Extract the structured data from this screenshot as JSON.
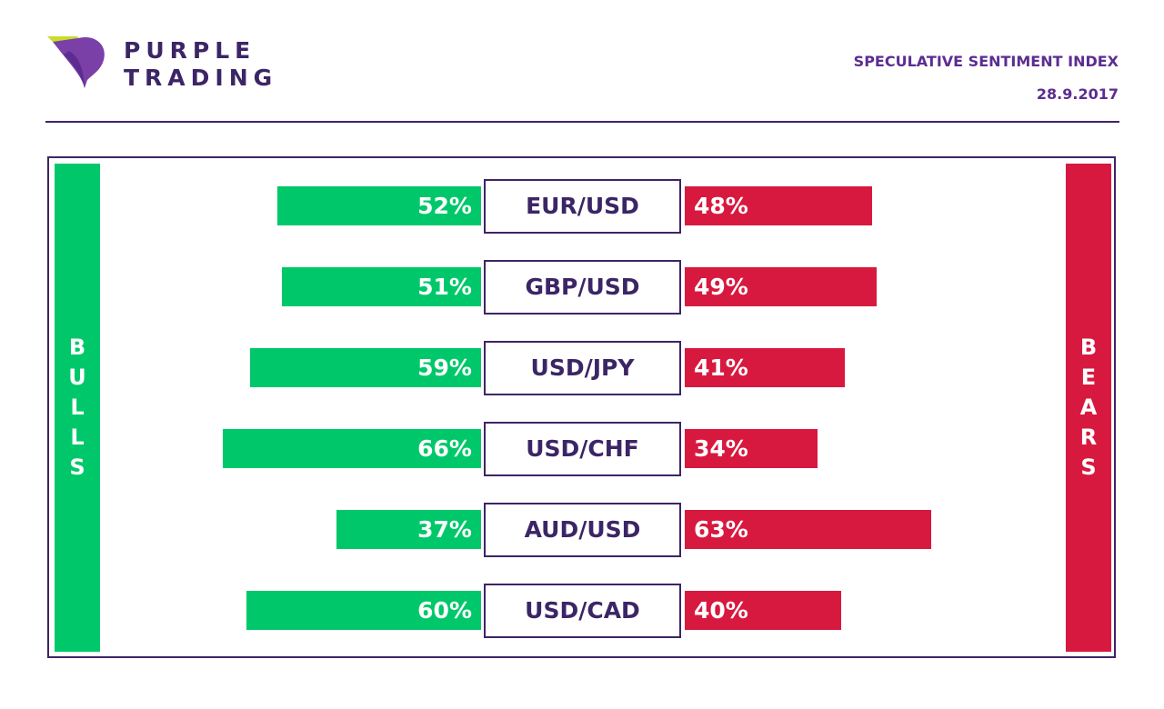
{
  "brand": {
    "line1": "PURPLE",
    "line2": "TRADING"
  },
  "header": {
    "title": "SPECULATIVE SENTIMENT INDEX",
    "date": "28.9.2017"
  },
  "labels": {
    "bulls": "BULLS",
    "bears": "BEARS"
  },
  "colors": {
    "bulls": "#00c86a",
    "bears": "#d8193f",
    "brand": "#3c2566",
    "accent": "#5c2d91"
  },
  "chart_data": {
    "type": "bar",
    "title": "SPECULATIVE SENTIMENT INDEX",
    "categories": [
      "EUR/USD",
      "GBP/USD",
      "USD/JPY",
      "USD/CHF",
      "AUD/USD",
      "USD/CAD"
    ],
    "series": [
      {
        "name": "BULLS",
        "values": [
          52,
          51,
          59,
          66,
          37,
          60
        ],
        "labels": [
          "52%",
          "51%",
          "59%",
          "66%",
          "37%",
          "60%"
        ]
      },
      {
        "name": "BEARS",
        "values": [
          48,
          49,
          41,
          34,
          63,
          40
        ],
        "labels": [
          "48%",
          "49%",
          "41%",
          "34%",
          "63%",
          "40%"
        ]
      }
    ]
  }
}
